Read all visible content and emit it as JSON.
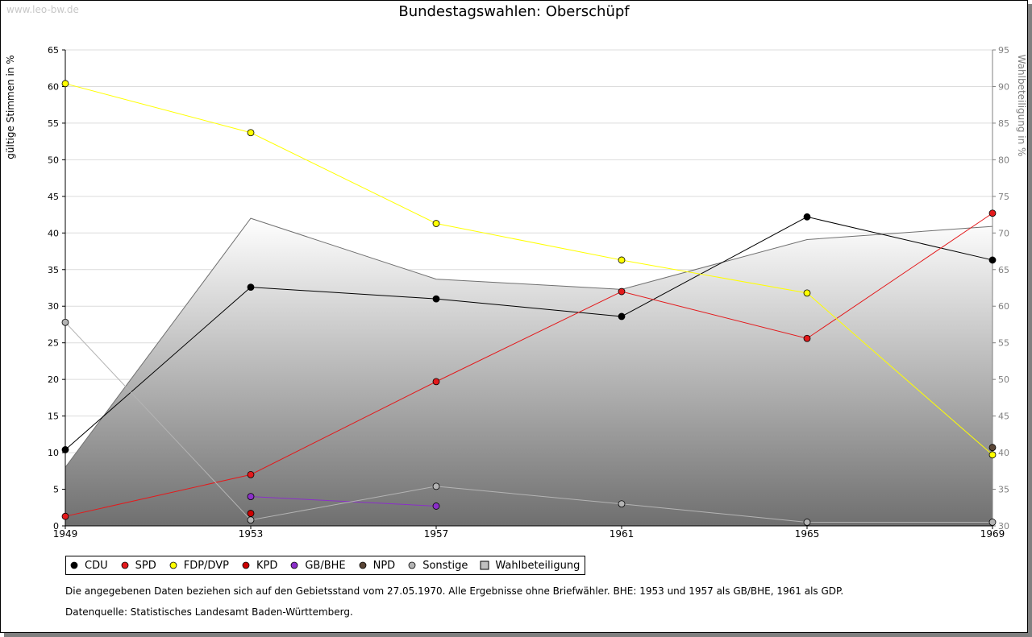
{
  "watermark": "www.leo-bw.de",
  "chart_data": {
    "type": "line",
    "title": "Bundestagswahlen: Oberschüpf",
    "x": [
      "1949",
      "1953",
      "1957",
      "1961",
      "1965",
      "1969"
    ],
    "ylabel": "gültige Stimmen in %",
    "ylim": [
      0,
      65
    ],
    "yticks": [
      "0",
      "5",
      "10",
      "15",
      "20",
      "25",
      "30",
      "35",
      "40",
      "45",
      "50",
      "55",
      "60",
      "65"
    ],
    "y2label": "Wahlbeteiligung in %",
    "y2lim": [
      30,
      95
    ],
    "y2ticks": [
      "30",
      "35",
      "40",
      "45",
      "50",
      "55",
      "60",
      "65",
      "70",
      "75",
      "80",
      "85",
      "90",
      "95"
    ],
    "grid": true,
    "series": [
      {
        "name": "CDU",
        "color": "#000000",
        "values": [
          10.4,
          32.6,
          31.0,
          28.6,
          42.2,
          36.3
        ]
      },
      {
        "name": "SPD",
        "color": "#e31a1c",
        "values": [
          1.3,
          7.0,
          19.7,
          32.0,
          25.6,
          42.7
        ]
      },
      {
        "name": "FDP/DVP",
        "color": "#ffff00",
        "values": [
          60.4,
          53.7,
          41.3,
          36.3,
          31.8,
          9.7
        ]
      },
      {
        "name": "KPD",
        "color": "#cc0000",
        "values": [
          null,
          1.7,
          null,
          null,
          null,
          null
        ]
      },
      {
        "name": "GB/BHE",
        "color": "#8b2fc9",
        "values": [
          null,
          4.0,
          2.7,
          null,
          null,
          null
        ]
      },
      {
        "name": "NPD",
        "color": "#5a4636",
        "values": [
          null,
          null,
          null,
          null,
          null,
          10.7
        ]
      },
      {
        "name": "Sonstige",
        "color": "#b4b4b4",
        "values": [
          27.8,
          0.8,
          5.4,
          3.0,
          0.5,
          0.5
        ]
      }
    ],
    "turnout": {
      "name": "Wahlbeteiligung",
      "values": [
        38.0,
        72.0,
        63.7,
        62.3,
        69.1,
        70.9
      ]
    },
    "legend_position": "bottom-left"
  },
  "legend": [
    {
      "label": "CDU",
      "color": "#000000",
      "shape": "circle"
    },
    {
      "label": "SPD",
      "color": "#e31a1c",
      "shape": "circle"
    },
    {
      "label": "FDP/DVP",
      "color": "#ffff00",
      "shape": "circle"
    },
    {
      "label": "KPD",
      "color": "#cc0000",
      "shape": "circle"
    },
    {
      "label": "GB/BHE",
      "color": "#8b2fc9",
      "shape": "circle"
    },
    {
      "label": "NPD",
      "color": "#5a4636",
      "shape": "circle"
    },
    {
      "label": "Sonstige",
      "color": "#b4b4b4",
      "shape": "circle"
    },
    {
      "label": "Wahlbeteiligung",
      "color": "#c0c0c0",
      "shape": "square"
    }
  ],
  "footer": {
    "note": "Die angegebenen Daten beziehen sich auf den Gebietsstand vom 27.05.1970. Alle Ergebnisse ohne Briefwähler. BHE: 1953 und 1957 als GB/BHE, 1961 als GDP.",
    "source": "Datenquelle: Statistisches Landesamt Baden-Württemberg."
  }
}
